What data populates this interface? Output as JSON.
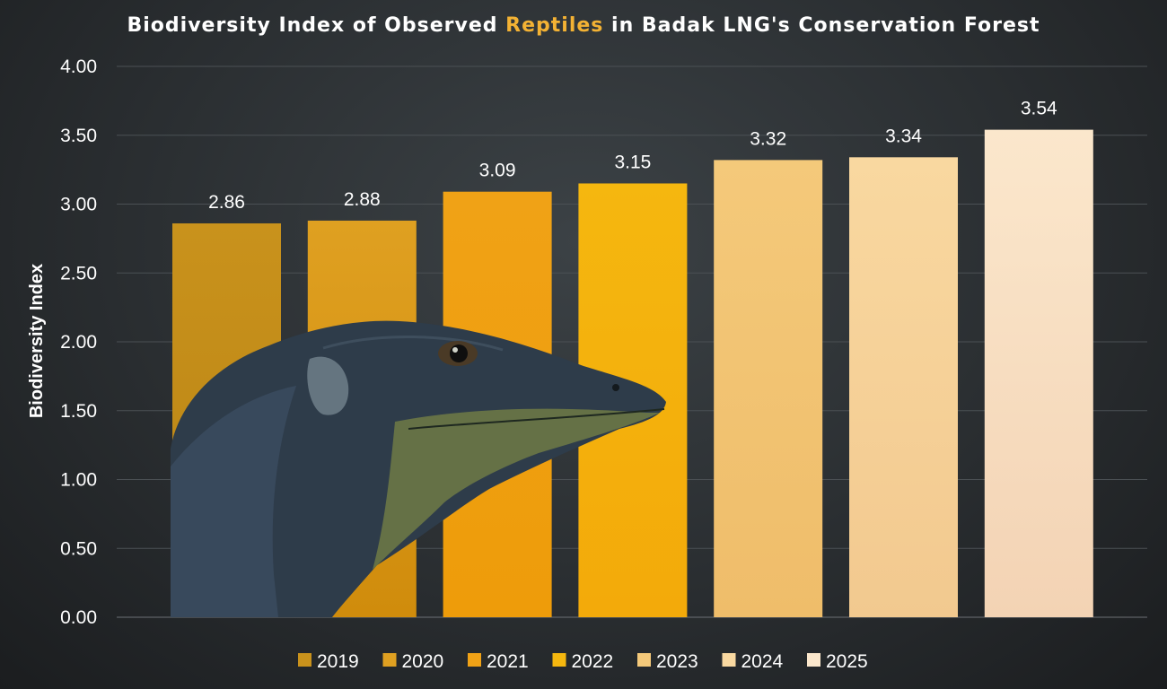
{
  "chart_data": {
    "type": "bar",
    "title_parts": [
      "Biodiversity Index of Observed ",
      "Reptiles",
      " in Badak LNG's Conservation Forest"
    ],
    "ylabel": "Biodiversity Index",
    "xlabel": "",
    "categories": [
      "2019",
      "2020",
      "2021",
      "2022",
      "2023",
      "2024",
      "2025"
    ],
    "values": [
      2.86,
      2.88,
      3.09,
      3.15,
      3.32,
      3.34,
      3.54
    ],
    "value_labels": [
      "2.86",
      "2.88",
      "3.09",
      "3.15",
      "3.32",
      "3.34",
      "3.54"
    ],
    "ylim": [
      0,
      4
    ],
    "yticks": [
      "0.00",
      "0.50",
      "1.00",
      "1.50",
      "2.00",
      "2.50",
      "3.00",
      "3.50",
      "4.00"
    ],
    "grid": true,
    "legend_position": "bottom",
    "colors": [
      "#c9921c",
      "#dfa021",
      "#f0a216",
      "#f5b70f",
      "#f4c97a",
      "#f9d8a0",
      "#fbe7cc"
    ],
    "colors_bottom": [
      "#b98414",
      "#d08c0c",
      "#ee9c0a",
      "#f3aa0a",
      "#efbd6a",
      "#f2c98f",
      "#f3d3b4"
    ],
    "highlight_color": "#f3b234",
    "photo": "monitor-lizard-head"
  }
}
